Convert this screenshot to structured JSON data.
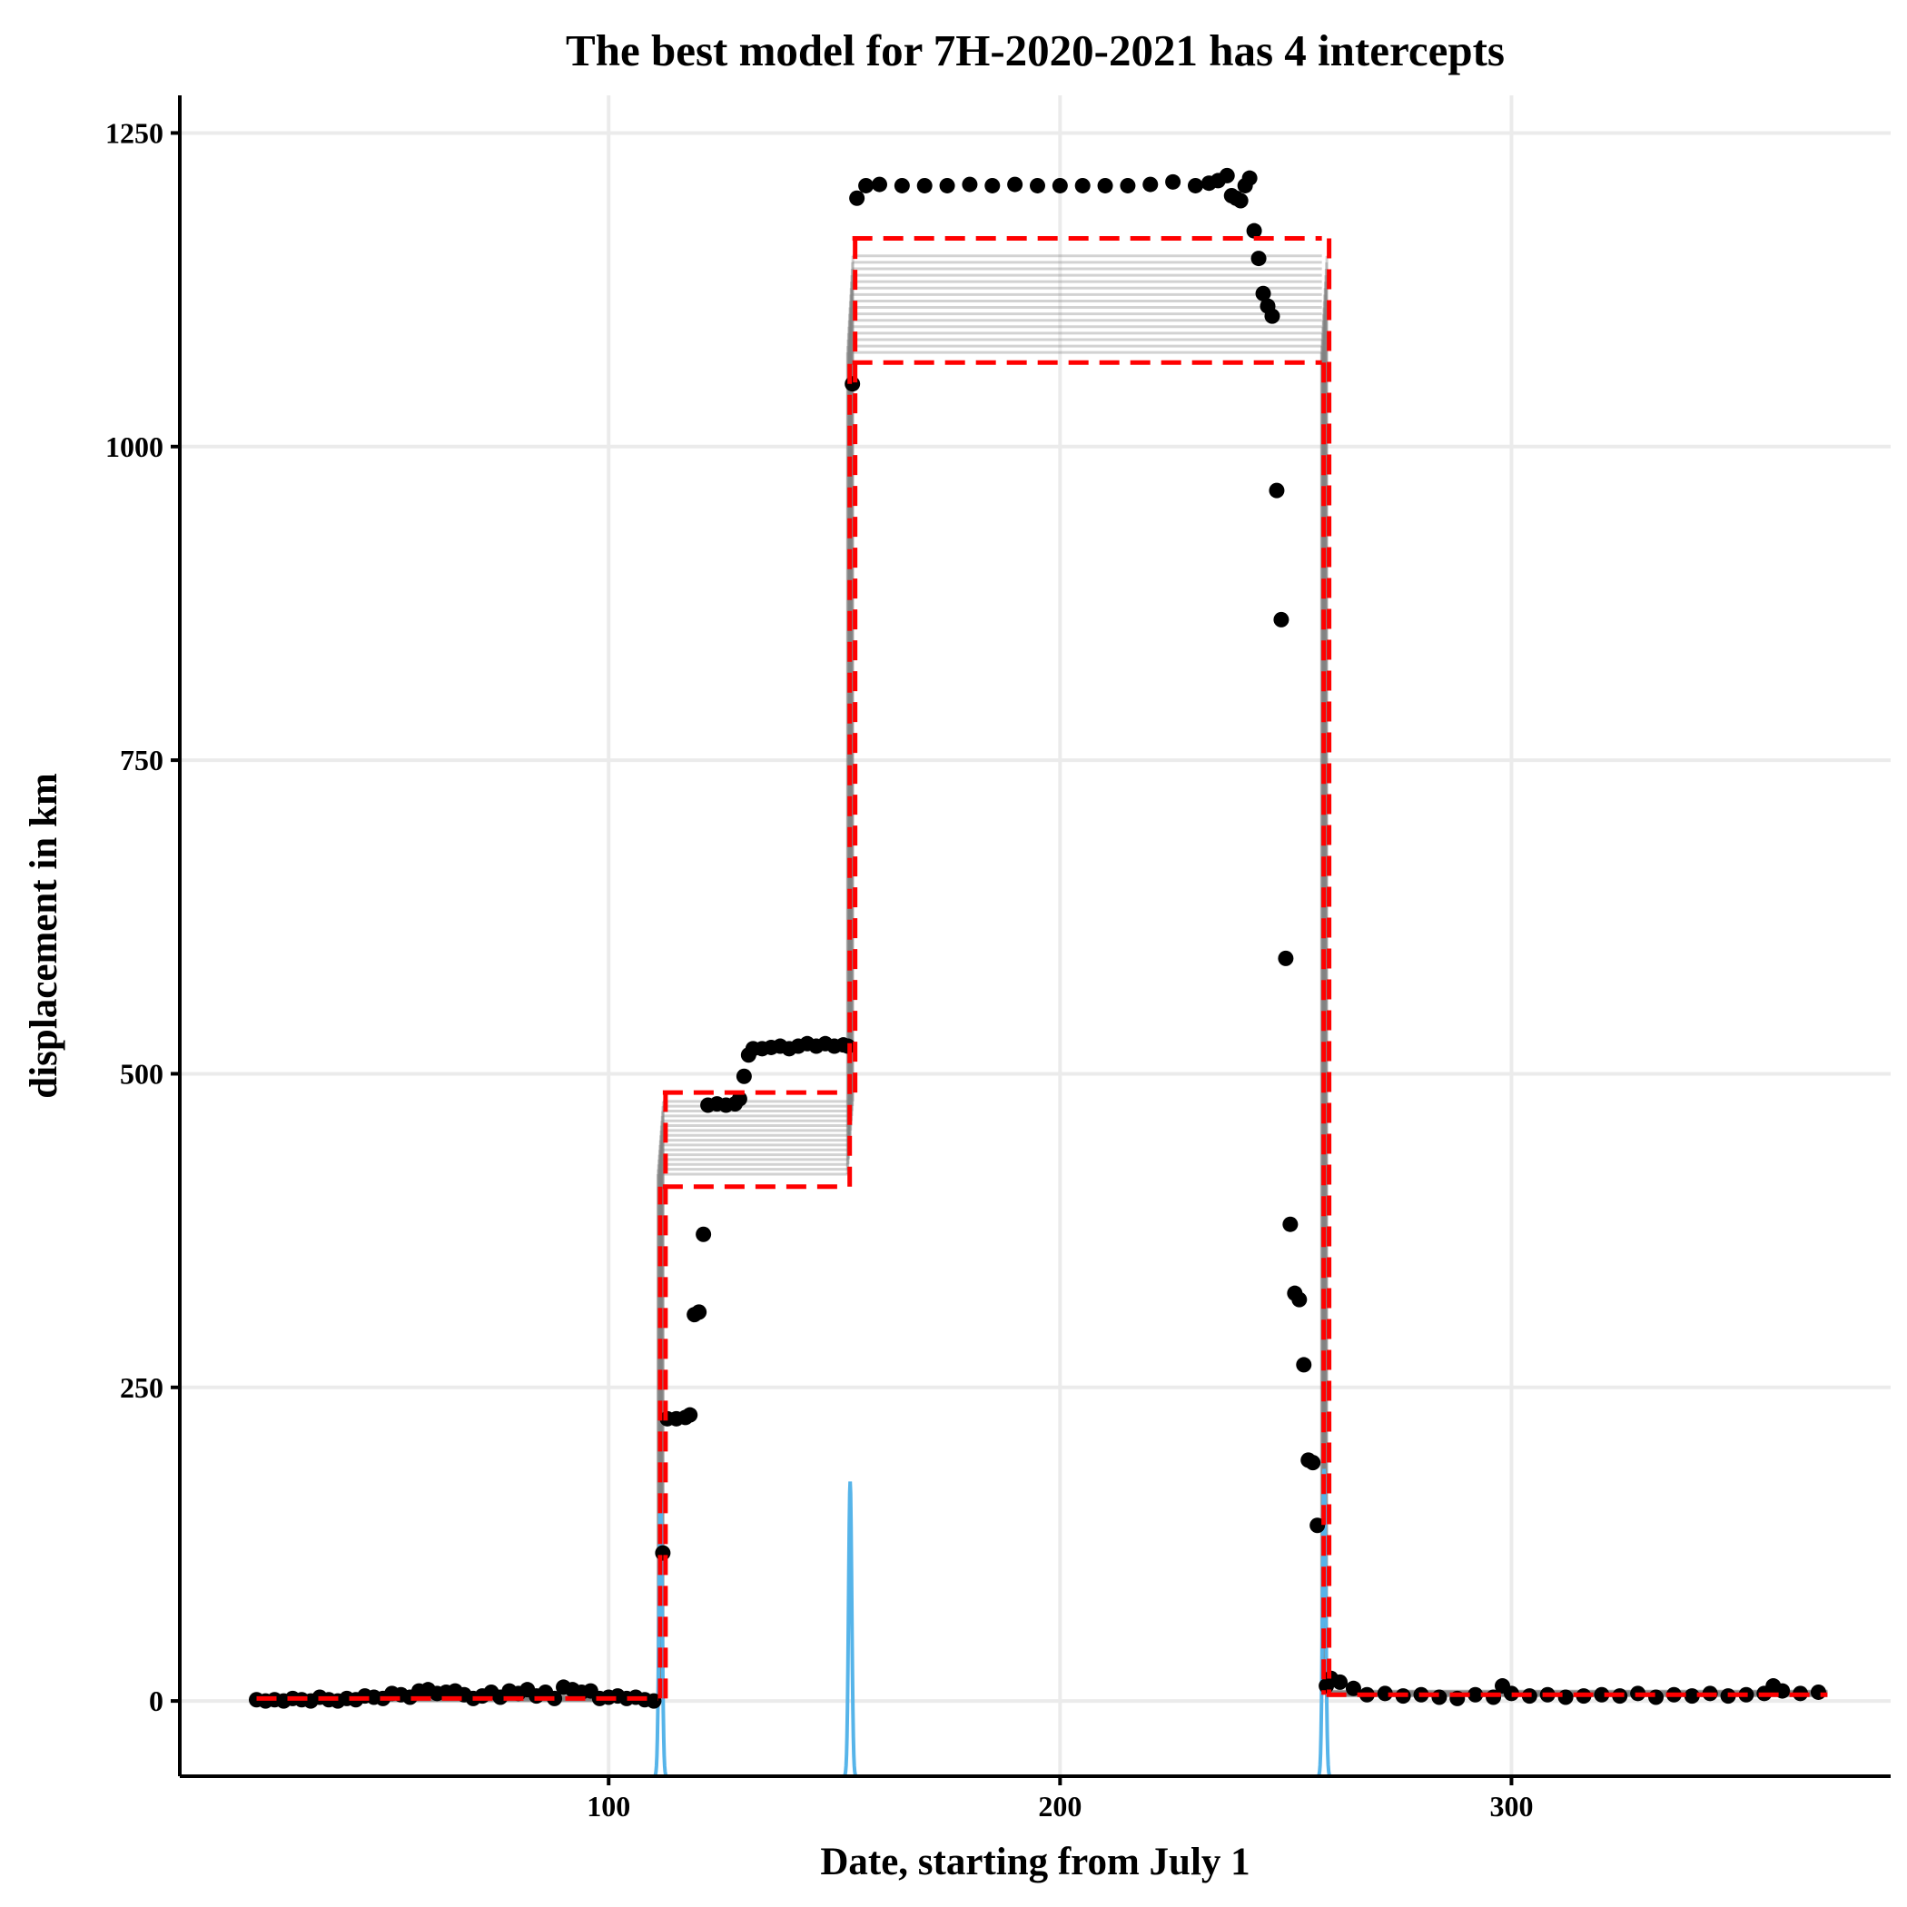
{
  "chart_data": {
    "type": "scatter",
    "title": "The best model for 7H-2020-2021 has 4 intercepts",
    "xlabel": "Date, starting from July 1",
    "ylabel": "displacement in km",
    "xlim": [
      5,
      384
    ],
    "ylim": [
      -60,
      1280
    ],
    "xticks": [
      100,
      200,
      300
    ],
    "yticks": [
      0,
      250,
      500,
      750,
      1000,
      1250
    ],
    "grid": true,
    "legend": "none",
    "colors": {
      "points": "#000000",
      "model_bounds": "#ff0000",
      "posterior_draws": "#7f7f7f",
      "changepoint_density": "#56b4e9"
    },
    "series": [
      {
        "type": "scatter",
        "points": [
          [
            22,
            1
          ],
          [
            24,
            0
          ],
          [
            26,
            1
          ],
          [
            28,
            0
          ],
          [
            30,
            2
          ],
          [
            32,
            1
          ],
          [
            34,
            0
          ],
          [
            36,
            3
          ],
          [
            38,
            1
          ],
          [
            40,
            0
          ],
          [
            42,
            2
          ],
          [
            44,
            1
          ],
          [
            46,
            4
          ],
          [
            48,
            3
          ],
          [
            50,
            2
          ],
          [
            52,
            6
          ],
          [
            54,
            5
          ],
          [
            56,
            3
          ],
          [
            58,
            8
          ],
          [
            60,
            9
          ],
          [
            62,
            6
          ],
          [
            64,
            7
          ],
          [
            66,
            8
          ],
          [
            68,
            5
          ],
          [
            70,
            2
          ],
          [
            72,
            4
          ],
          [
            74,
            7
          ],
          [
            76,
            3
          ],
          [
            78,
            8
          ],
          [
            80,
            6
          ],
          [
            82,
            9
          ],
          [
            84,
            4
          ],
          [
            86,
            7
          ],
          [
            88,
            2
          ],
          [
            90,
            11
          ],
          [
            92,
            9
          ],
          [
            94,
            7
          ],
          [
            96,
            8
          ],
          [
            98,
            2
          ],
          [
            100,
            3
          ],
          [
            102,
            4
          ],
          [
            104,
            2
          ],
          [
            106,
            3
          ],
          [
            108,
            1
          ],
          [
            110,
            0
          ],
          [
            112,
            118
          ],
          [
            113,
            225
          ],
          [
            115,
            225
          ],
          [
            117,
            226
          ],
          [
            118,
            228
          ],
          [
            119,
            308
          ],
          [
            120,
            310
          ],
          [
            121,
            372
          ],
          [
            122,
            475
          ],
          [
            124,
            476
          ],
          [
            126,
            475
          ],
          [
            128,
            476
          ],
          [
            129,
            480
          ],
          [
            130,
            498
          ],
          [
            131,
            515
          ],
          [
            132,
            520
          ],
          [
            134,
            520
          ],
          [
            136,
            521
          ],
          [
            138,
            522
          ],
          [
            140,
            520
          ],
          [
            142,
            522
          ],
          [
            144,
            524
          ],
          [
            146,
            522
          ],
          [
            148,
            524
          ],
          [
            150,
            522
          ],
          [
            152,
            523
          ],
          [
            153,
            522
          ],
          [
            154,
            1050
          ],
          [
            155,
            1198
          ],
          [
            157,
            1208
          ],
          [
            160,
            1209
          ],
          [
            165,
            1208
          ],
          [
            170,
            1208
          ],
          [
            175,
            1208
          ],
          [
            180,
            1209
          ],
          [
            185,
            1208
          ],
          [
            190,
            1209
          ],
          [
            195,
            1208
          ],
          [
            200,
            1208
          ],
          [
            205,
            1208
          ],
          [
            210,
            1208
          ],
          [
            215,
            1208
          ],
          [
            220,
            1209
          ],
          [
            225,
            1211
          ],
          [
            230,
            1208
          ],
          [
            233,
            1210
          ],
          [
            235,
            1212
          ],
          [
            237,
            1216
          ],
          [
            238,
            1200
          ],
          [
            239,
            1198
          ],
          [
            240,
            1196
          ],
          [
            241,
            1208
          ],
          [
            242,
            1214
          ],
          [
            243,
            1172
          ],
          [
            244,
            1150
          ],
          [
            245,
            1122
          ],
          [
            246,
            1112
          ],
          [
            247,
            1104
          ],
          [
            248,
            965
          ],
          [
            249,
            862
          ],
          [
            250,
            592
          ],
          [
            251,
            380
          ],
          [
            252,
            325
          ],
          [
            253,
            320
          ],
          [
            254,
            268
          ],
          [
            255,
            192
          ],
          [
            256,
            190
          ],
          [
            257,
            140
          ],
          [
            259,
            12
          ],
          [
            260,
            18
          ],
          [
            262,
            15
          ],
          [
            265,
            10
          ],
          [
            268,
            5
          ],
          [
            272,
            6
          ],
          [
            276,
            4
          ],
          [
            280,
            5
          ],
          [
            284,
            3
          ],
          [
            288,
            2
          ],
          [
            292,
            5
          ],
          [
            296,
            3
          ],
          [
            298,
            12
          ],
          [
            300,
            6
          ],
          [
            304,
            4
          ],
          [
            308,
            5
          ],
          [
            312,
            3
          ],
          [
            316,
            4
          ],
          [
            320,
            5
          ],
          [
            324,
            4
          ],
          [
            328,
            6
          ],
          [
            332,
            3
          ],
          [
            336,
            5
          ],
          [
            340,
            4
          ],
          [
            344,
            6
          ],
          [
            348,
            4
          ],
          [
            352,
            5
          ],
          [
            356,
            6
          ],
          [
            358,
            12
          ],
          [
            360,
            8
          ],
          [
            364,
            6
          ],
          [
            368,
            7
          ]
        ]
      },
      {
        "type": "step",
        "style": "dashed",
        "segments": [
          {
            "x": [
              22,
              111
            ],
            "y": 2
          },
          {
            "x": [
              112,
              153
            ],
            "y_upper": 485,
            "y_lower": 410
          },
          {
            "x": [
              154,
              258
            ],
            "y_upper": 1166,
            "y_lower": 1067
          },
          {
            "x": [
              259,
              370
            ],
            "y": 5
          }
        ],
        "changepoints": [
          112,
          154,
          258
        ]
      },
      {
        "type": "step-bundle",
        "segments": [
          {
            "x": [
              22,
              111
            ],
            "y_range": [
              0,
              4
            ]
          },
          {
            "x": [
              112,
              153
            ],
            "y_range": [
              420,
              478
            ]
          },
          {
            "x": [
              154,
              258
            ],
            "y_range": [
              1075,
              1152
            ]
          },
          {
            "x": [
              259,
              370
            ],
            "y_range": [
              4,
              8
            ]
          }
        ]
      },
      {
        "type": "density",
        "peaks": [
          {
            "x": 111.5,
            "height": 165
          },
          {
            "x": 153.5,
            "height": 175
          },
          {
            "x": 258.5,
            "height": 185
          }
        ]
      }
    ]
  }
}
